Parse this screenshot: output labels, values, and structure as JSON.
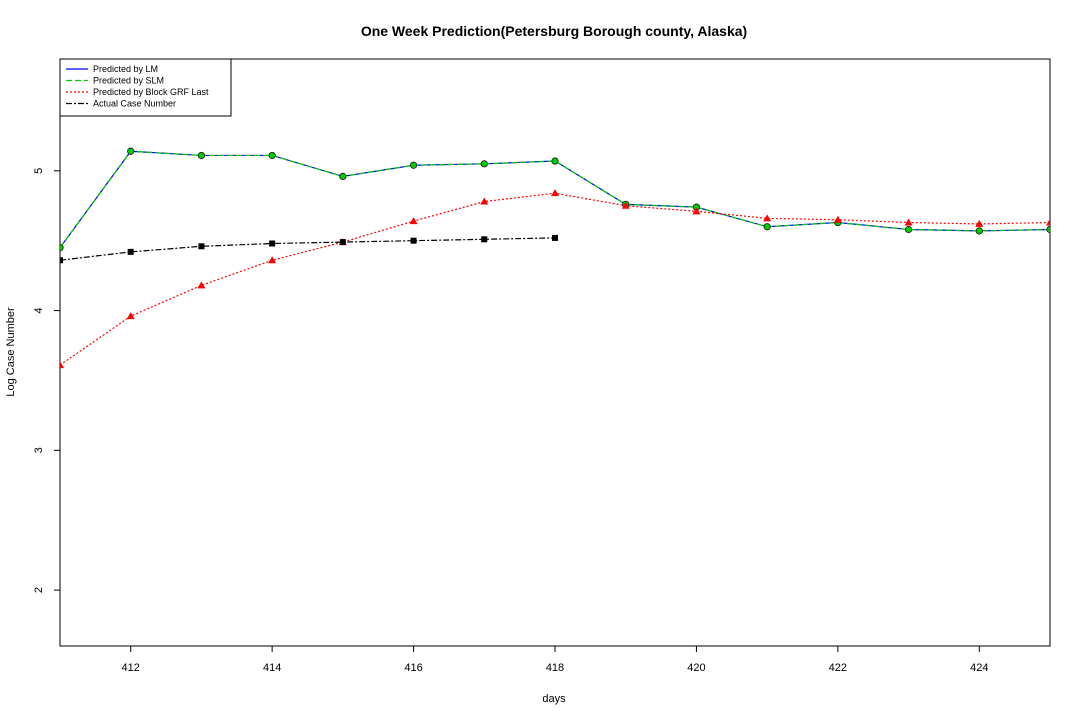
{
  "chart_data": {
    "type": "line",
    "title": "One Week Prediction(Petersburg Borough county, Alaska)",
    "xlabel": "days",
    "ylabel": "Log Case Number",
    "xlim": [
      411,
      425
    ],
    "ylim": [
      1.6,
      5.8
    ],
    "xticks": [
      412,
      414,
      416,
      418,
      420,
      422,
      424
    ],
    "yticks": [
      2,
      3,
      4,
      5
    ],
    "legend_position": "top-left",
    "series": [
      {
        "name": "Predicted by LM",
        "color": "#0000ff",
        "dash": "solid",
        "marker": "none",
        "x": [
          411,
          412,
          413,
          414,
          415,
          416,
          417,
          418,
          419,
          420,
          421,
          422,
          423,
          424,
          425
        ],
        "values": [
          4.45,
          5.14,
          5.11,
          5.11,
          4.96,
          5.04,
          5.05,
          5.07,
          4.76,
          4.74,
          4.6,
          4.63,
          4.58,
          4.57,
          4.58
        ]
      },
      {
        "name": "Predicted by SLM",
        "color": "#00cc00",
        "dash": "dashed",
        "marker": "circle",
        "x": [
          411,
          412,
          413,
          414,
          415,
          416,
          417,
          418,
          419,
          420,
          421,
          422,
          423,
          424,
          425
        ],
        "values": [
          4.45,
          5.14,
          5.11,
          5.11,
          4.96,
          5.04,
          5.05,
          5.07,
          4.76,
          4.74,
          4.6,
          4.63,
          4.58,
          4.57,
          4.58
        ]
      },
      {
        "name": "Predicted by Block GRF Last",
        "color": "#ff0000",
        "dash": "dotted",
        "marker": "triangle",
        "x": [
          411,
          412,
          413,
          414,
          415,
          416,
          417,
          418,
          419,
          420,
          421,
          422,
          423,
          424,
          425
        ],
        "values": [
          3.61,
          3.96,
          4.18,
          4.36,
          4.49,
          4.64,
          4.78,
          4.84,
          4.75,
          4.71,
          4.66,
          4.65,
          4.63,
          4.62,
          4.63
        ]
      },
      {
        "name": "Actual Case Number",
        "color": "#000000",
        "dash": "dashdot",
        "marker": "square",
        "x": [
          411,
          412,
          413,
          414,
          415,
          416,
          417,
          418
        ],
        "values": [
          4.36,
          4.42,
          4.46,
          4.48,
          4.49,
          4.5,
          4.51,
          4.52
        ]
      }
    ]
  }
}
